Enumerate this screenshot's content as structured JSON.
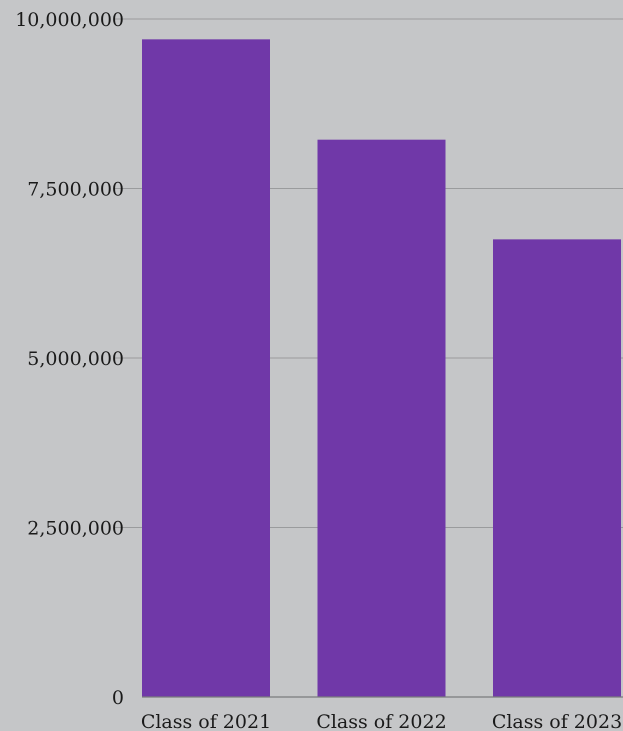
{
  "chart_data": {
    "type": "bar",
    "title": "",
    "xlabel": "",
    "ylabel": "",
    "categories": [
      "Class of 2021",
      "Class of 2022",
      "Class of 2023"
    ],
    "values": [
      9700000,
      8220000,
      6750000
    ],
    "ylim": [
      0,
      10000000
    ],
    "y_ticks": [
      0,
      2500000,
      5000000,
      7500000,
      10000000
    ],
    "y_tick_labels": [
      "0",
      "2,500,000",
      "5,000,000",
      "7,500,000",
      "10,000,000"
    ],
    "grid": true,
    "legend": "none",
    "bar_color": "#7038a8",
    "background_color": "#c5c6c8"
  }
}
